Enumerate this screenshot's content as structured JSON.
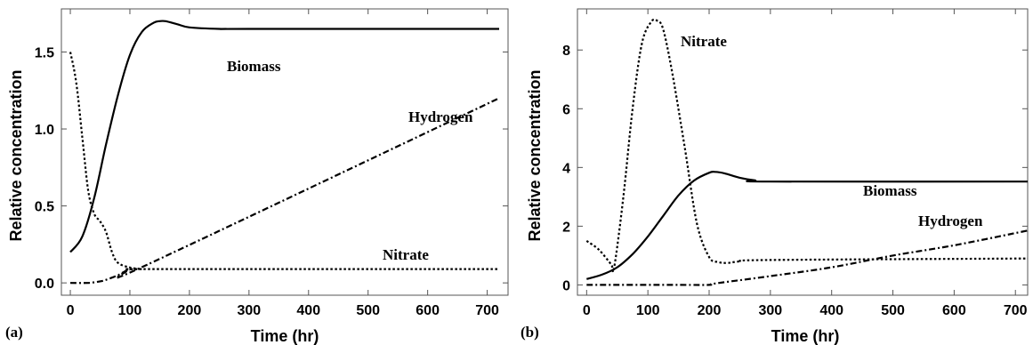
{
  "chart_data": [
    {
      "panel_label": "(a)",
      "type": "line",
      "xlabel": "Time (hr)",
      "ylabel": "Relative concentration",
      "xlim": [
        -15,
        735
      ],
      "ylim": [
        -0.08,
        1.78
      ],
      "xticks": [
        0,
        100,
        200,
        300,
        400,
        500,
        600,
        700
      ],
      "yticks": [
        0.0,
        0.5,
        1.0,
        1.5
      ],
      "ytick_labels": [
        "0.0",
        "0.5",
        "1.0",
        "1.5"
      ],
      "grid": false,
      "series": [
        {
          "name": "Biomass",
          "style": "solid",
          "x": [
            0,
            20,
            40,
            60,
            80,
            100,
            120,
            140,
            150,
            160,
            180,
            200,
            250,
            300,
            720
          ],
          "y": [
            0.2,
            0.3,
            0.55,
            0.9,
            1.22,
            1.48,
            1.63,
            1.69,
            1.7,
            1.7,
            1.68,
            1.66,
            1.65,
            1.65,
            1.65
          ]
        },
        {
          "name": "Nitrate",
          "style": "dotted",
          "x": [
            0,
            10,
            20,
            30,
            40,
            50,
            60,
            70,
            80,
            100,
            120,
            140,
            720
          ],
          "y": [
            1.5,
            1.3,
            0.95,
            0.6,
            0.45,
            0.4,
            0.33,
            0.2,
            0.13,
            0.1,
            0.09,
            0.09,
            0.09
          ]
        },
        {
          "name": "Hydrogen",
          "style": "dashdot",
          "x": [
            0,
            30,
            50,
            60,
            80,
            100,
            130,
            720
          ],
          "y": [
            0,
            0,
            0.01,
            0.02,
            0.05,
            0.09,
            0.12,
            1.2
          ]
        }
      ],
      "annotations": [
        "Biomass",
        "Hydrogen",
        "Nitrate"
      ]
    },
    {
      "panel_label": "(b)",
      "type": "line",
      "xlabel": "Time (hr)",
      "ylabel": "Relative concentration",
      "xlim": [
        -15,
        720
      ],
      "ylim": [
        -0.35,
        9.4
      ],
      "xticks": [
        0,
        100,
        200,
        300,
        400,
        500,
        600,
        700
      ],
      "yticks": [
        0,
        2,
        4,
        6,
        8
      ],
      "ytick_labels": [
        "0",
        "2",
        "4",
        "6",
        "8"
      ],
      "grid": false,
      "series": [
        {
          "name": "Biomass",
          "style": "solid",
          "x": [
            0,
            25,
            50,
            75,
            100,
            125,
            150,
            175,
            200,
            210,
            225,
            250,
            275,
            300,
            720
          ],
          "y": [
            0.2,
            0.35,
            0.6,
            1.05,
            1.65,
            2.35,
            3.05,
            3.55,
            3.82,
            3.85,
            3.8,
            3.65,
            3.56,
            3.52,
            3.52
          ]
        },
        {
          "name": "Nitrate",
          "style": "dotted",
          "x": [
            0,
            20,
            40,
            45,
            60,
            75,
            90,
            105,
            115,
            125,
            140,
            160,
            180,
            200,
            215,
            230,
            250,
            300,
            720
          ],
          "y": [
            1.5,
            1.2,
            0.7,
            0.6,
            3.0,
            6.0,
            8.2,
            8.95,
            9.0,
            8.7,
            7.2,
            4.7,
            2.1,
            0.95,
            0.78,
            0.75,
            0.8,
            0.85,
            0.9
          ]
        },
        {
          "name": "Hydrogen",
          "style": "dashdot",
          "x": [
            0,
            150,
            200,
            210,
            300,
            400,
            500,
            600,
            720
          ],
          "y": [
            0,
            0,
            0,
            0.05,
            0.3,
            0.6,
            1.0,
            1.35,
            1.85
          ]
        }
      ],
      "annotations": [
        "Nitrate",
        "Biomass",
        "Hydrogen"
      ]
    }
  ]
}
